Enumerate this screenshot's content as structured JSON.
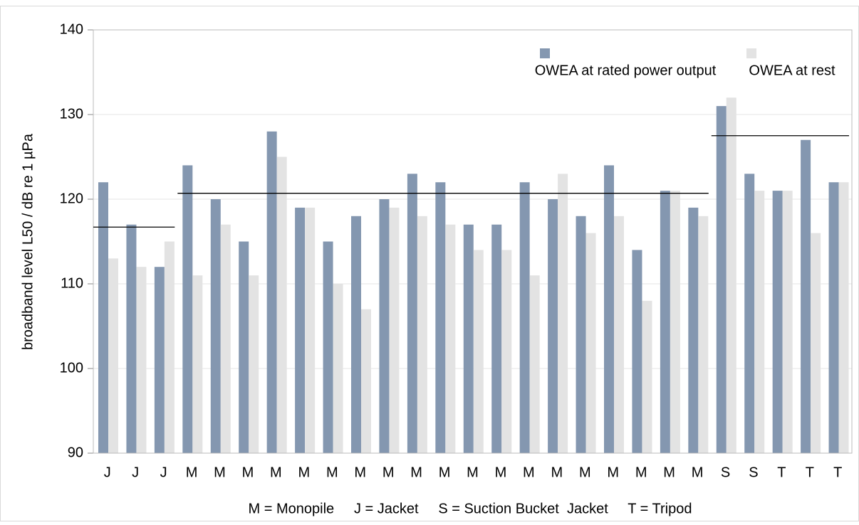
{
  "chart_data": {
    "type": "bar",
    "y_label": "broadband level L50 / dB re 1 µPa",
    "note": "M = Monopile     J = Jacket     S = Suction Bucket  Jacket     T = Tripod",
    "categories": [
      "J",
      "J",
      "J",
      "M",
      "M",
      "M",
      "M",
      "M",
      "M",
      "M",
      "M",
      "M",
      "M",
      "M",
      "M",
      "M",
      "M",
      "M",
      "M",
      "M",
      "M",
      "M",
      "S",
      "S",
      "T",
      "T",
      "T"
    ],
    "series": [
      {
        "name": "OWEA at rated power output",
        "color": "#8497b0",
        "values": [
          122,
          117,
          112,
          124,
          120,
          115,
          128,
          119,
          115,
          118,
          120,
          123,
          122,
          117,
          117,
          122,
          120,
          118,
          124,
          114,
          121,
          119,
          131,
          123,
          121,
          127,
          122
        ]
      },
      {
        "name": "OWEA at rest",
        "color": "#e3e3e3",
        "values": [
          113,
          112,
          115,
          111,
          117,
          111,
          125,
          119,
          110,
          107,
          119,
          118,
          117,
          114,
          114,
          111,
          123,
          116,
          118,
          108,
          121,
          118,
          132,
          121,
          121,
          116,
          122
        ]
      }
    ],
    "reference_lines": [
      {
        "value": 116.7,
        "from": 0,
        "to": 2
      },
      {
        "value": 120.7,
        "from": 3,
        "to": 21
      },
      {
        "value": 127.5,
        "from": 22,
        "to": 26
      }
    ],
    "ylim": [
      90,
      140
    ],
    "yticks": [
      90,
      100,
      110,
      120,
      130,
      140
    ],
    "grid": true
  }
}
